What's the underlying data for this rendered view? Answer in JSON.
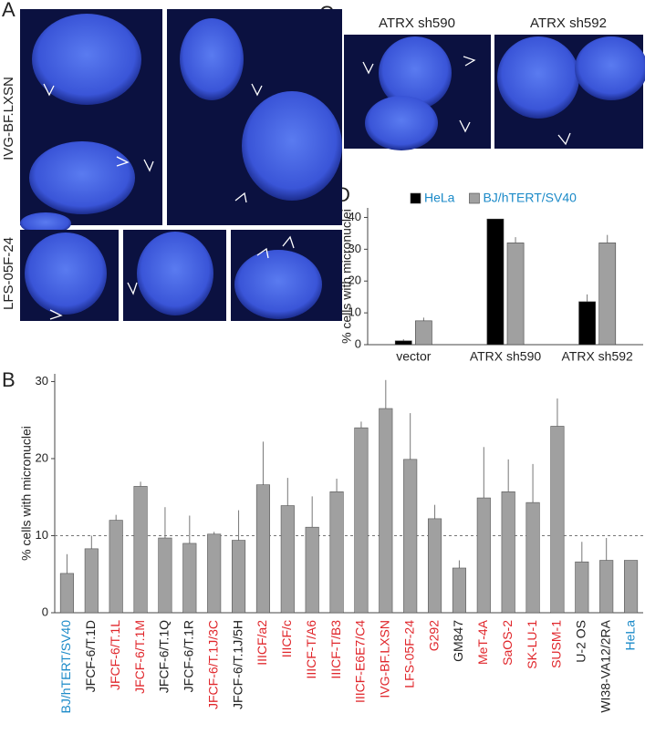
{
  "panels": {
    "labels": [
      "A",
      "B",
      "C",
      "D"
    ],
    "image_labels": [
      "IVG-BF.LXSN",
      "LFS-05F-24",
      "ATRX sh590",
      "ATRX sh592"
    ]
  },
  "chart_data": [
    {
      "type": "bar",
      "ylabel": "% cells with micronuclei",
      "categories": [
        "BJ/hTERT/SV40",
        "JFCF-6/T.1D",
        "JFCF-6/T.1L",
        "JFCF-6/T.1M",
        "JFCF-6/T.1Q",
        "JFCF-6/T.1R",
        "JFCF-6/T.1J/3C",
        "JFCF-6/T.1J/5H",
        "IIICF/a2",
        "IIICF/c",
        "IIICF-T/A6",
        "IIICF-T/B3",
        "IIICF-E6E7/C4",
        "IVG-BF.LXSN",
        "LFS-05F-24",
        "G292",
        "GM847",
        "MeT-4A",
        "SaOS-2",
        "SK-LU-1",
        "SUSM-1",
        "U-2 OS",
        "WI38-VA12/2RA",
        "HeLa"
      ],
      "label_colors": [
        "#1b8ac8",
        "#222222",
        "#e0262b",
        "#e0262b",
        "#222222",
        "#222222",
        "#e0262b",
        "#222222",
        "#e0262b",
        "#e0262b",
        "#e0262b",
        "#e0262b",
        "#e0262b",
        "#e0262b",
        "#e0262b",
        "#e0262b",
        "#222222",
        "#e0262b",
        "#e0262b",
        "#e0262b",
        "#e0262b",
        "#222222",
        "#222222",
        "#1b8ac8"
      ],
      "values": [
        5.1,
        8.3,
        12.0,
        16.4,
        9.7,
        9.0,
        10.2,
        9.4,
        16.6,
        13.9,
        11.1,
        15.7,
        24.0,
        26.5,
        19.9,
        12.2,
        5.8,
        14.9,
        15.7,
        14.3,
        24.2,
        6.6,
        6.8,
        6.8
      ],
      "errors": [
        2.5,
        1.7,
        0.7,
        0.6,
        4.0,
        3.6,
        0.3,
        3.9,
        5.6,
        3.6,
        4.0,
        1.7,
        0.8,
        3.7,
        6.0,
        1.8,
        1.0,
        6.6,
        4.2,
        5.0,
        3.6,
        2.6,
        2.9,
        null
      ],
      "color": "#a0a0a0",
      "reference_line": 10,
      "ylim": [
        0,
        31
      ],
      "yticks": [
        0,
        10,
        20,
        30
      ]
    },
    {
      "type": "grouped_bar",
      "ylabel": "% cells with micronuclei",
      "categories": [
        "vector",
        "ATRX sh590",
        "ATRX sh592"
      ],
      "series": [
        {
          "name": "HeLa",
          "color": "#000000",
          "values": [
            1.2,
            39.5,
            13.5
          ],
          "errors": [
            0.5,
            null,
            2.3
          ]
        },
        {
          "name": "BJ/hTERT/SV40",
          "color": "#a0a0a0",
          "values": [
            7.5,
            32.0,
            32.0
          ],
          "errors": [
            1.0,
            1.8,
            2.5
          ]
        }
      ],
      "legend_text_color": "#1b8ac8",
      "ylim": [
        0,
        43
      ],
      "yticks": [
        0,
        10,
        20,
        30,
        40
      ]
    }
  ]
}
